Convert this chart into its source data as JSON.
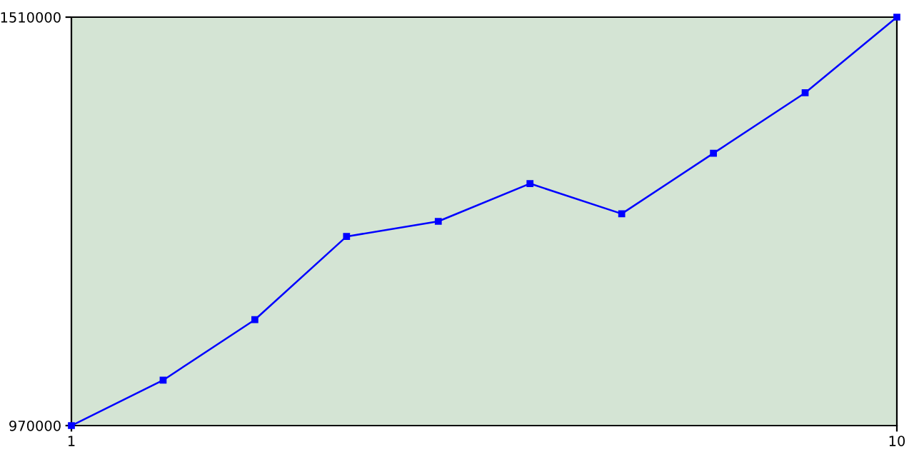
{
  "chart_data": {
    "type": "line",
    "x": [
      1,
      2,
      3,
      4,
      5,
      6,
      7,
      8,
      9,
      10
    ],
    "series": [
      {
        "color": "#0000ff",
        "values": [
          970000,
          1030000,
          1110000,
          1220000,
          1240000,
          1290000,
          1250000,
          1330000,
          1410000,
          1510000
        ]
      }
    ],
    "xlim": [
      1,
      10
    ],
    "xticks": [
      1,
      10
    ],
    "ylim": [
      970000,
      1510000
    ],
    "yticks": [
      970000,
      1510000
    ],
    "grid": false,
    "legend": false,
    "marker": "square",
    "line_style": "solid"
  }
}
